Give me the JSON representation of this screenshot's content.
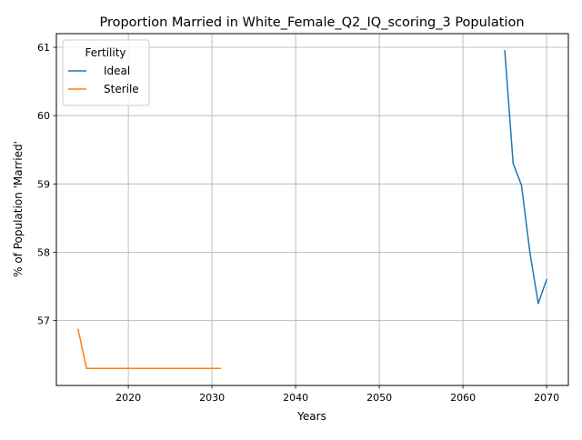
{
  "chart_data": {
    "type": "line",
    "title": "Proportion Married in White_Female_Q2_IQ_scoring_3 Population",
    "xlabel": "Years",
    "ylabel": "% of Population 'Married'",
    "xlim": [
      2011.4,
      2072.6
    ],
    "ylim": [
      56.05,
      61.2
    ],
    "xticks": [
      2020,
      2030,
      2040,
      2050,
      2060,
      2070
    ],
    "yticks": [
      57,
      58,
      59,
      60,
      61
    ],
    "grid": true,
    "legend": {
      "title": "Fertility",
      "placement": "top-left"
    },
    "series": [
      {
        "name": "Ideal",
        "color": "#1f77b4",
        "x": [
          2065,
          2066,
          2067,
          2068,
          2069,
          2070
        ],
        "y": [
          60.95,
          59.3,
          58.98,
          58.0,
          57.25,
          57.6
        ]
      },
      {
        "name": "Sterile",
        "color": "#ff7f0e",
        "x": [
          2014,
          2015,
          2016,
          2017,
          2018,
          2019,
          2020,
          2021,
          2022,
          2023,
          2024,
          2025,
          2026,
          2027,
          2028,
          2029,
          2030,
          2031
        ],
        "y": [
          56.87,
          56.3,
          56.3,
          56.3,
          56.3,
          56.3,
          56.3,
          56.3,
          56.3,
          56.3,
          56.3,
          56.3,
          56.3,
          56.3,
          56.3,
          56.3,
          56.3,
          56.3
        ]
      }
    ]
  }
}
